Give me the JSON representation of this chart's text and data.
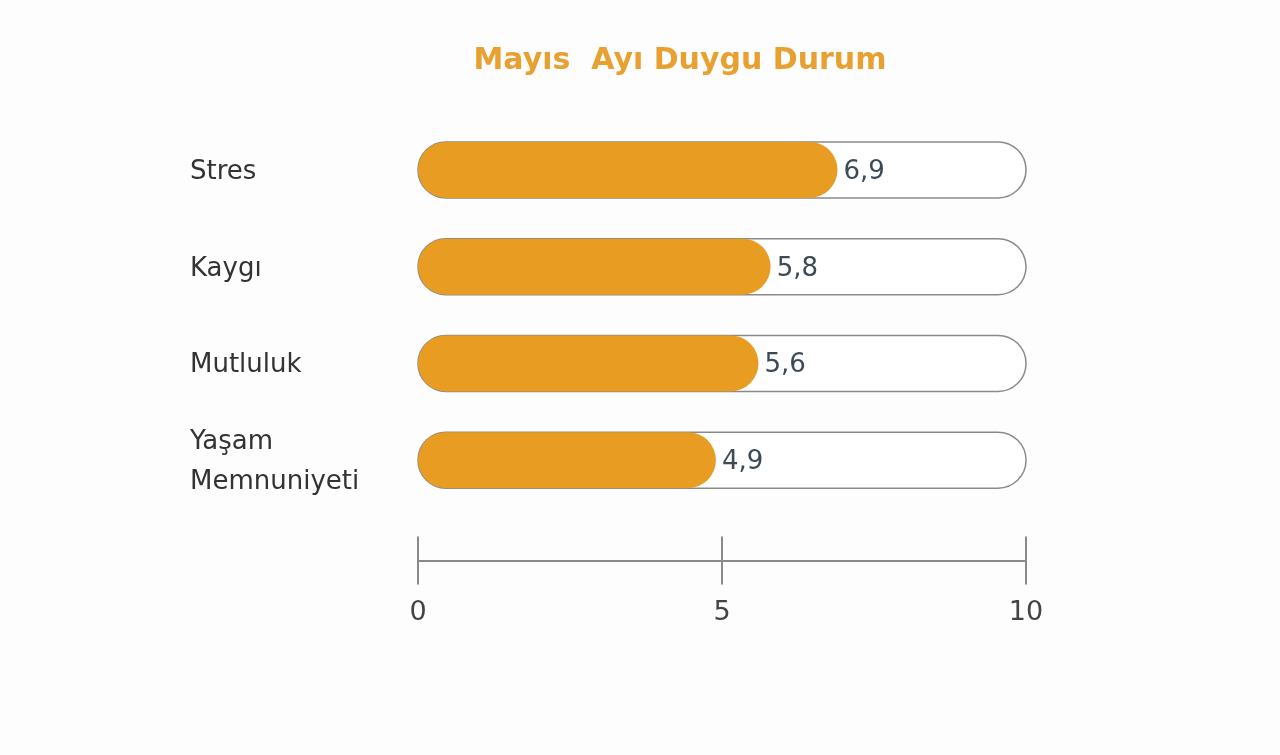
{
  "chart_data": {
    "type": "bar",
    "title": "Mayıs  Ayı Duygu Durum",
    "orientation": "horizontal",
    "categories": [
      "Stres",
      "Kaygı",
      "Mutluluk",
      "Yaşam Memnuniyeti"
    ],
    "values": [
      6.9,
      5.8,
      5.6,
      4.9
    ],
    "value_labels": [
      "6,9",
      "5,8",
      "5,6",
      "4,9"
    ],
    "color": "#e89c22",
    "xlim": [
      0,
      10
    ],
    "xticks": [
      0,
      5,
      10
    ],
    "grid": false
  }
}
